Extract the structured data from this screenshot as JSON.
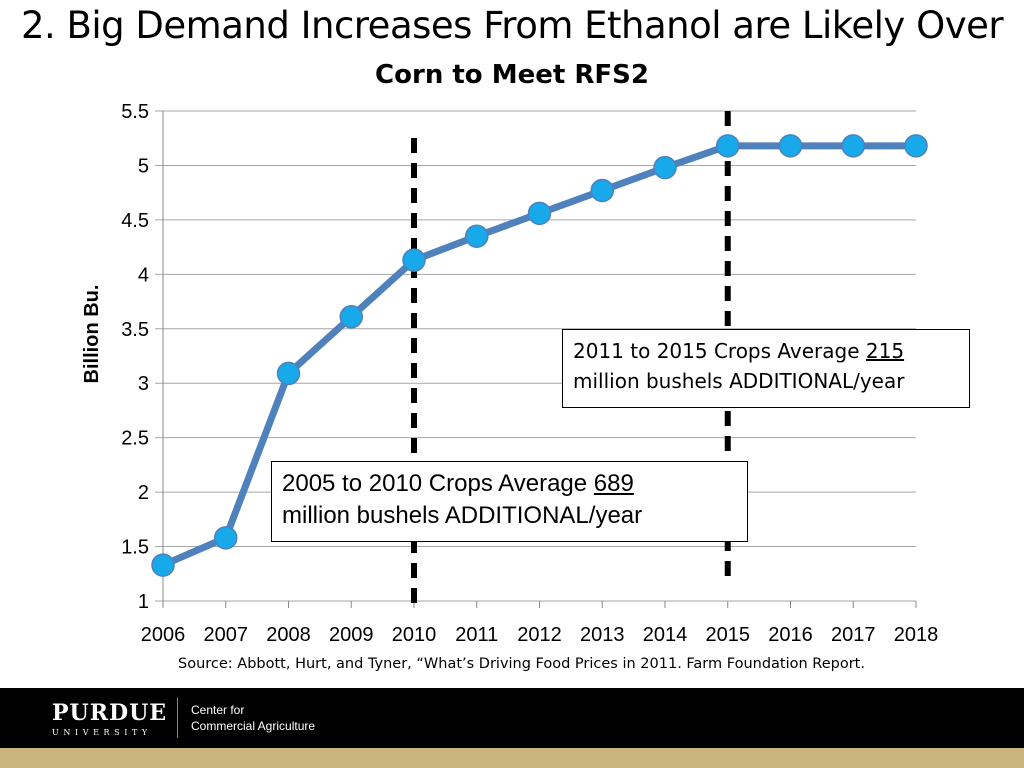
{
  "slide": {
    "title": "2. Big Demand Increases From Ethanol are Likely Over",
    "source": "Source: Abbott, Hurt, and Tyner, “What’s Driving Food Prices in 2011.  Farm Foundation Report."
  },
  "annotations": {
    "a_line1": "2011 to 2015 Crops Average ",
    "a_num": "215",
    "a_line2": "million bushels ADDITIONAL/year",
    "b_line1": "2005 to 2010 Crops Average ",
    "b_num": "689",
    "b_line2": "million bushels ADDITIONAL/year"
  },
  "footer": {
    "logo": "PURDUE",
    "logo_sub": "UNIVERSITY",
    "center_line1": "Center for",
    "center_line2": "Commercial Agriculture"
  },
  "colors": {
    "line": "#4f81bd",
    "marker": "#17a9ea",
    "grid": "#a6a6a6",
    "footer_gold": "#c9b47c"
  },
  "chart_data": {
    "type": "line",
    "title": "Corn to Meet RFS2",
    "xlabel": "",
    "ylabel": "Billion Bu.",
    "categories": [
      "2006",
      "2007",
      "2008",
      "2009",
      "2010",
      "2011",
      "2012",
      "2013",
      "2014",
      "2015",
      "2016",
      "2017",
      "2018"
    ],
    "series": [
      {
        "values": [
          1.33,
          1.58,
          3.09,
          3.61,
          4.13,
          4.35,
          4.56,
          4.77,
          4.98,
          5.18,
          5.18,
          5.18,
          5.18
        ]
      }
    ],
    "ylim": [
      1,
      5.5
    ],
    "yticks": [
      "1",
      "1.5",
      "2",
      "2.5",
      "3",
      "3.5",
      "4",
      "4.5",
      "5",
      "5.5"
    ],
    "reference_lines": [
      "2010",
      "2015"
    ],
    "grid": true
  }
}
